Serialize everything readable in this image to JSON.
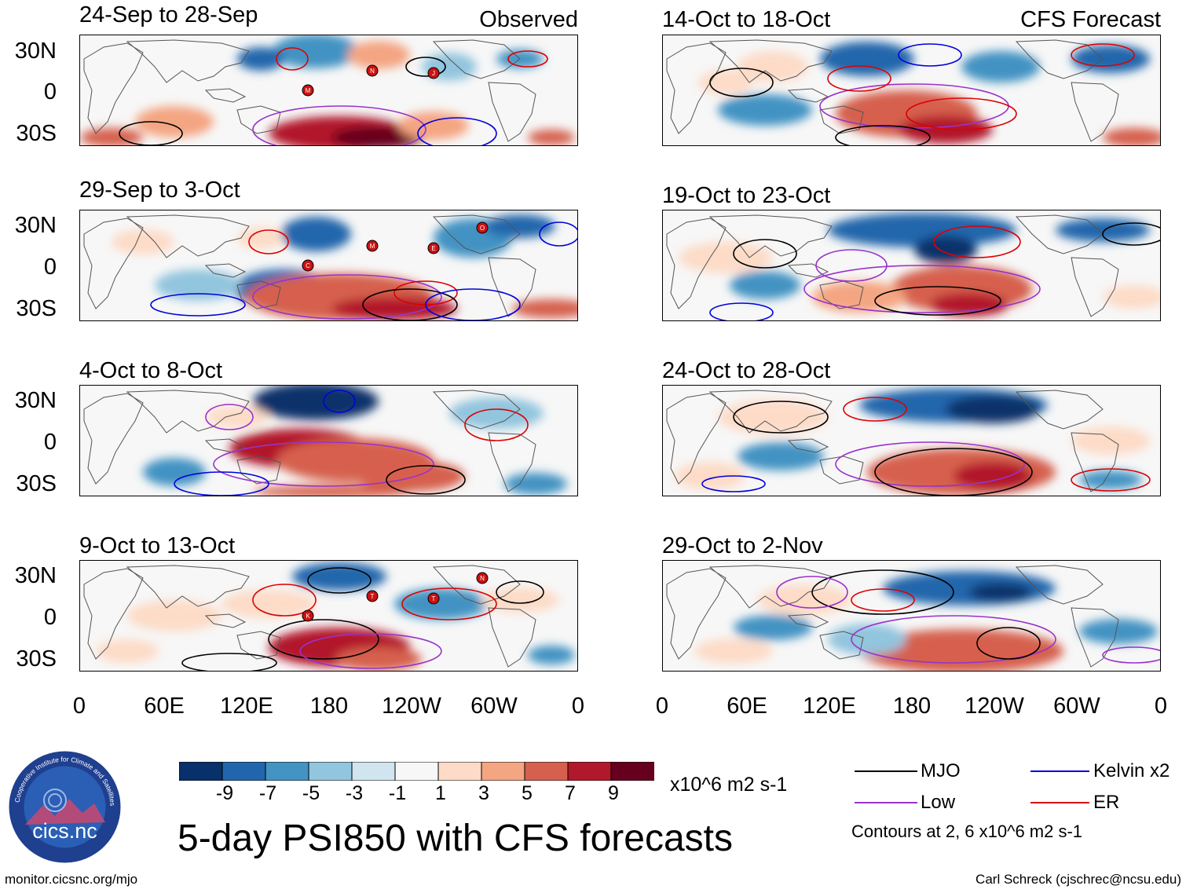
{
  "panels": [
    {
      "id": "obs1",
      "title": "24-Sep to 28-Sep",
      "tag": "Observed",
      "kind": "observed",
      "storms": [
        "N",
        "M",
        "J"
      ]
    },
    {
      "id": "obs2",
      "title": "29-Sep to 3-Oct",
      "tag": "",
      "kind": "observed",
      "storms": [
        "M",
        "C",
        "E",
        "O"
      ]
    },
    {
      "id": "obs3",
      "title": "4-Oct to 8-Oct",
      "tag": "",
      "kind": "observed",
      "storms": []
    },
    {
      "id": "obs4",
      "title": "9-Oct to 13-Oct",
      "tag": "",
      "kind": "observed",
      "storms": [
        "T",
        "K",
        "T",
        "N"
      ]
    },
    {
      "id": "fc1",
      "title": "14-Oct to 18-Oct",
      "tag": "CFS Forecast",
      "kind": "forecast",
      "storms": []
    },
    {
      "id": "fc2",
      "title": "19-Oct to 23-Oct",
      "tag": "",
      "kind": "forecast",
      "storms": []
    },
    {
      "id": "fc3",
      "title": "24-Oct to 28-Oct",
      "tag": "",
      "kind": "forecast",
      "storms": []
    },
    {
      "id": "fc4",
      "title": "29-Oct to 2-Nov",
      "tag": "",
      "kind": "forecast",
      "storms": []
    }
  ],
  "lat_labels": [
    "30N",
    "0",
    "30S"
  ],
  "lon_labels": [
    "0",
    "60E",
    "120E",
    "180",
    "120W",
    "60W",
    "0"
  ],
  "colorbar": {
    "colors": [
      "#08306b",
      "#2166ac",
      "#4393c3",
      "#92c5de",
      "#d1e5f0",
      "#f7f7f7",
      "#fddbc7",
      "#f4a582",
      "#d6604d",
      "#b2182b",
      "#67001f"
    ],
    "labels": [
      "-9",
      "-7",
      "-5",
      "-3",
      "-1",
      "1",
      "3",
      "5",
      "7",
      "9"
    ],
    "units": "x10^6 m2 s-1"
  },
  "title": "5-day PSI850 with CFS forecasts",
  "legend": {
    "items": [
      {
        "label": "MJO",
        "color": "#000000"
      },
      {
        "label": "Kelvin x2",
        "color": "#0000dd"
      },
      {
        "label": "Low",
        "color": "#9932cc"
      },
      {
        "label": "ER",
        "color": "#dd0000"
      }
    ],
    "note": "Contours at 2, 6 x10^6 m2 s-1"
  },
  "logo": {
    "text": "cics.nc",
    "ring_text": "Cooperative Institute for Climate and Satellites"
  },
  "footer": {
    "left": "monitor.cicsnc.org/mjo",
    "right": "Carl Schreck (cjschrec@ncsu.edu)"
  }
}
